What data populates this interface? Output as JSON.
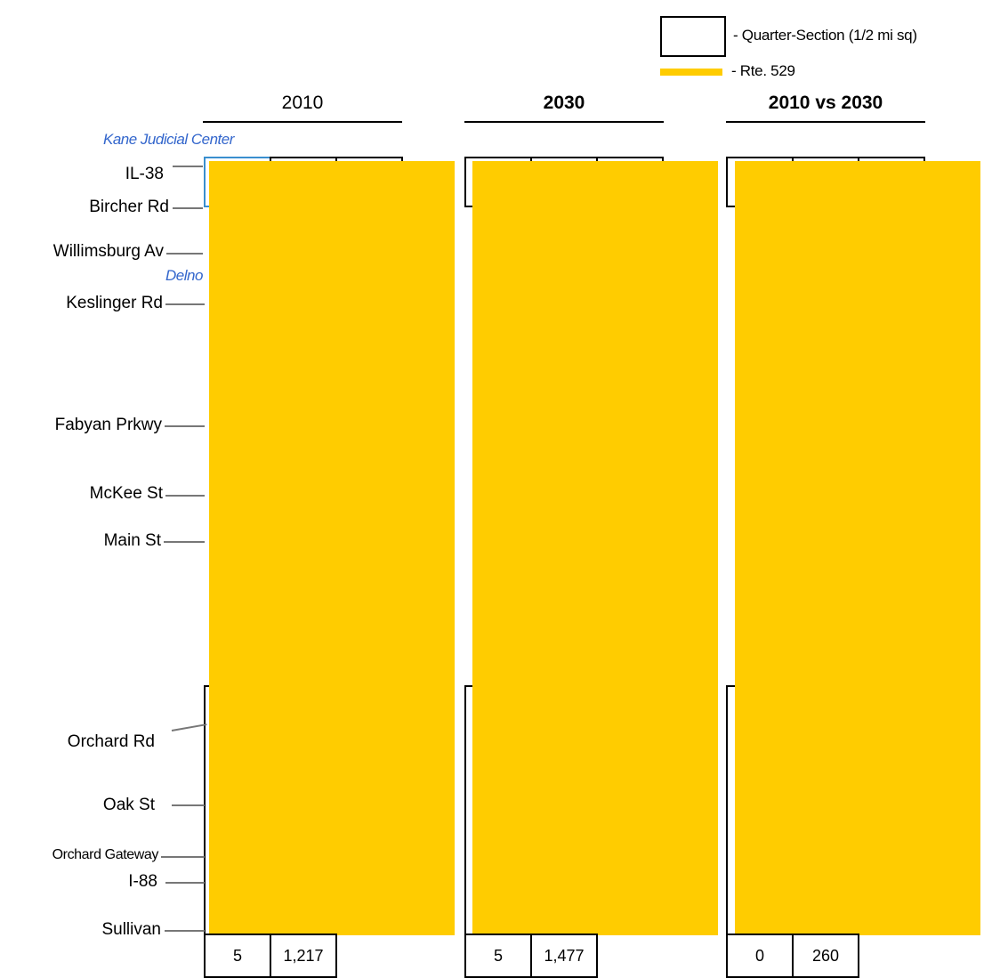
{
  "legend": {
    "quarter_section_label": "- Quarter-Section (1/2 mi sq)",
    "route_label": "- Rte. 529",
    "route_color": "#ffcc00"
  },
  "columns": [
    {
      "header": "2010",
      "bold": false,
      "bottom_values": [
        "5",
        "1,217"
      ]
    },
    {
      "header": "2030",
      "bold": true,
      "bottom_values": [
        "5",
        "1,477"
      ]
    },
    {
      "header": "2010 vs 2030",
      "bold": true,
      "bottom_values": [
        "0",
        "260"
      ]
    }
  ],
  "annotations": {
    "kane": "Kane Judicial Center",
    "delnor": "Delno"
  },
  "roads": [
    "IL-38",
    "Bircher Rd",
    "Willimsburg Av",
    "Keslinger Rd",
    "Fabyan Prkwy",
    "McKee St",
    "Main St",
    "Orchard Rd",
    "Oak St",
    "Orchard Gateway",
    "I-88",
    "Sullivan"
  ]
}
